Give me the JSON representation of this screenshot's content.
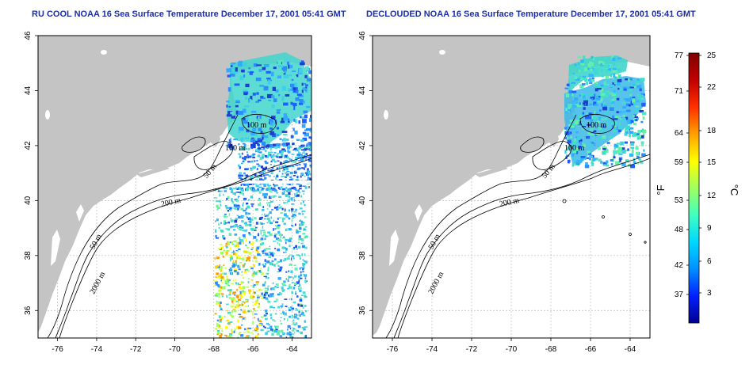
{
  "panels": [
    {
      "title": "RU COOL NOAA 16 Sea Surface Temperature December 17, 2001 05:41 GMT",
      "contour_labels": [
        "100 m",
        "100 m",
        "50 m",
        "200 m",
        "50 m",
        "2000 m"
      ]
    },
    {
      "title": "DECLOUDED NOAA 16 Sea Surface Temperature December 17, 2001 05:41 GMT",
      "contour_labels": [
        "100 m",
        "100 m",
        "50 m",
        "200 m",
        "50 m",
        "2000 m"
      ]
    }
  ],
  "axes": {
    "lon_ticks": [
      "-76",
      "-74",
      "-72",
      "-70",
      "-68",
      "-66",
      "-64"
    ],
    "lat_ticks": [
      "46",
      "44",
      "42",
      "40",
      "38",
      "36"
    ]
  },
  "colorbar": {
    "f_label": "°F",
    "c_label": "°C",
    "f_ticks": [
      "77",
      "71",
      "64",
      "59",
      "53",
      "48",
      "42",
      "37"
    ],
    "c_ticks": [
      "25",
      "22",
      "18",
      "15",
      "12",
      "9",
      "6",
      "3"
    ],
    "colors": [
      "#00008f",
      "#0020ff",
      "#0090ff",
      "#00d8ff",
      "#40ffc0",
      "#a0ff60",
      "#ffff00",
      "#ffa000",
      "#ff3000",
      "#c00000",
      "#800000"
    ]
  },
  "colors": {
    "land": "#c4c4c4",
    "water": "#ffffff",
    "grid": "#bbbbbb",
    "title": "#1c2fa8"
  }
}
